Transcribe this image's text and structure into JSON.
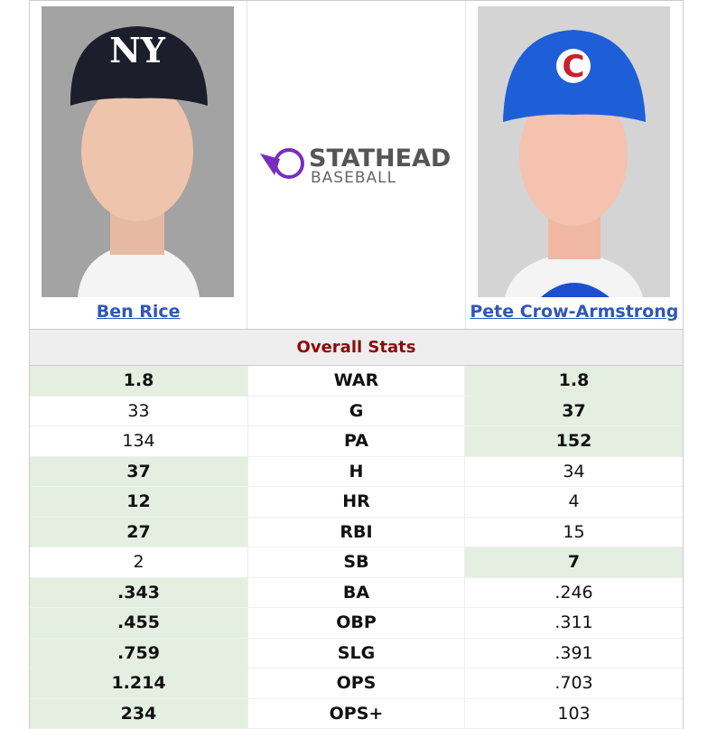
{
  "players": [
    {
      "name": "Ben Rice"
    },
    {
      "name": "Pete Crow-Armstrong"
    }
  ],
  "logo": {
    "brand": "STATHEAD",
    "sport": "BASEBALL"
  },
  "section_title": "Overall Stats",
  "highlight_color": "#e4efe2",
  "rows": [
    {
      "stat": "WAR",
      "left": "1.8",
      "right": "1.8",
      "leader": "both"
    },
    {
      "stat": "G",
      "left": "33",
      "right": "37",
      "leader": "right"
    },
    {
      "stat": "PA",
      "left": "134",
      "right": "152",
      "leader": "right"
    },
    {
      "stat": "H",
      "left": "37",
      "right": "34",
      "leader": "left"
    },
    {
      "stat": "HR",
      "left": "12",
      "right": "4",
      "leader": "left"
    },
    {
      "stat": "RBI",
      "left": "27",
      "right": "15",
      "leader": "left"
    },
    {
      "stat": "SB",
      "left": "2",
      "right": "7",
      "leader": "right"
    },
    {
      "stat": "BA",
      "left": ".343",
      "right": ".246",
      "leader": "left"
    },
    {
      "stat": "OBP",
      "left": ".455",
      "right": ".311",
      "leader": "left"
    },
    {
      "stat": "SLG",
      "left": ".759",
      "right": ".391",
      "leader": "left"
    },
    {
      "stat": "OPS",
      "left": "1.214",
      "right": ".703",
      "leader": "left"
    },
    {
      "stat": "OPS+",
      "left": "234",
      "right": "103",
      "leader": "left"
    }
  ]
}
